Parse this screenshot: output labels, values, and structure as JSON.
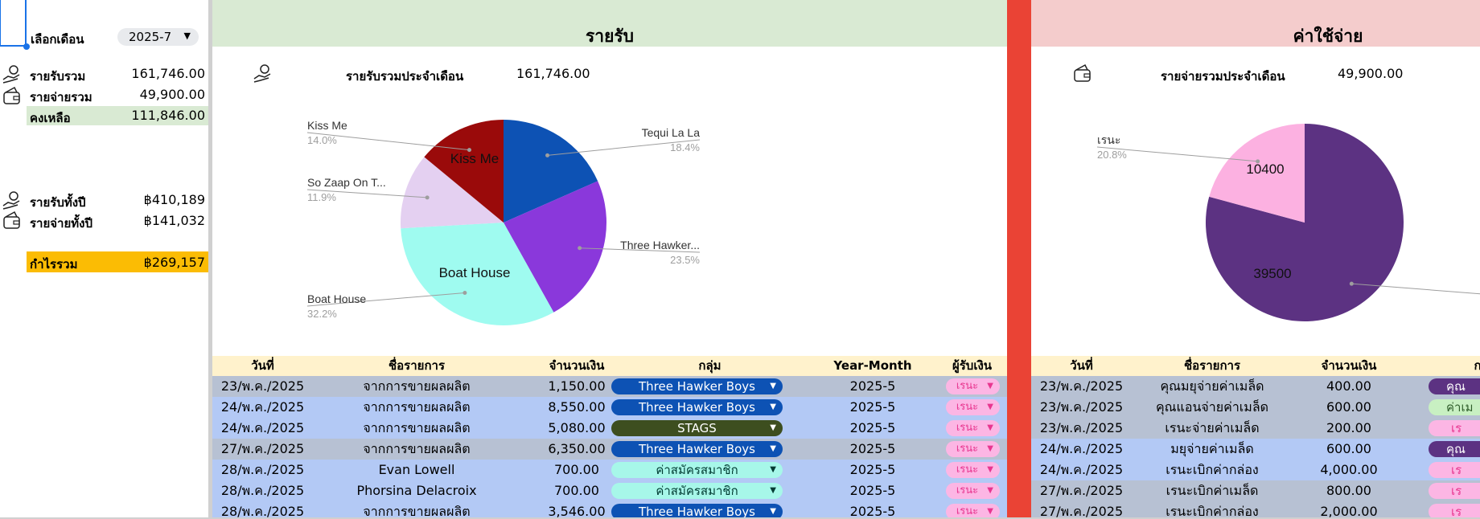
{
  "sidebar": {
    "month_label": "เลือกเดือน",
    "month_value": "2025-7",
    "income_total_label": "รายรับรวม",
    "income_total_value": "161,746.00",
    "expense_total_label": "รายจ่ายรวม",
    "expense_total_value": "49,900.00",
    "balance_label": "คงเหลือ",
    "balance_value": "111,846.00",
    "income_year_label": "รายรับทั้งปี",
    "income_year_value": "฿410,189",
    "expense_year_label": "รายจ่ายทั้งปี",
    "expense_year_value": "฿141,032",
    "profit_label": "กำไรรวม",
    "profit_value": "฿269,157"
  },
  "income": {
    "title": "รายรับ",
    "month_total_label": "รายรับรวมประจำเดือน",
    "month_total_value": "161,746.00",
    "columns": [
      "วันที่",
      "ชื่อรายการ",
      "จำนวนเงิน",
      "กลุ่ม",
      "Year-Month",
      "ผู้รับเงิน"
    ],
    "rows": [
      {
        "date": "23/พ.ค./2025",
        "name": "จากการขายผลผลิต",
        "amount": "1,150.00",
        "group": "Three Hawker Boys",
        "ym": "2025-5",
        "payee": "เรนะ"
      },
      {
        "date": "24/พ.ค./2025",
        "name": "จากการขายผลผลิต",
        "amount": "8,550.00",
        "group": "Three Hawker Boys",
        "ym": "2025-5",
        "payee": "เรนะ"
      },
      {
        "date": "24/พ.ค./2025",
        "name": "จากการขายผลผลิต",
        "amount": "5,080.00",
        "group": "STAGS",
        "ym": "2025-5",
        "payee": "เรนะ"
      },
      {
        "date": "27/พ.ค./2025",
        "name": "จากการขายผลผลิต",
        "amount": "6,350.00",
        "group": "Three Hawker Boys",
        "ym": "2025-5",
        "payee": "เรนะ"
      },
      {
        "date": "28/พ.ค./2025",
        "name": "Evan Lowell",
        "amount": "700.00",
        "group": "ค่าสมัครสมาชิก",
        "ym": "2025-5",
        "payee": "เรนะ"
      },
      {
        "date": "28/พ.ค./2025",
        "name": "Phorsina Delacroix",
        "amount": "700.00",
        "group": "ค่าสมัครสมาชิก",
        "ym": "2025-5",
        "payee": "เรนะ"
      },
      {
        "date": "28/พ.ค./2025",
        "name": "จากการขายผลผลิต",
        "amount": "3,546.00",
        "group": "Three Hawker Boys",
        "ym": "2025-5",
        "payee": "เรนะ"
      }
    ]
  },
  "expense": {
    "title": "ค่าใช้จ่าย",
    "month_total_label": "รายจ่ายรวมประจำเดือน",
    "month_total_value": "49,900.00",
    "columns": [
      "วันที่",
      "ชื่อรายการ",
      "จำนวนเงิน",
      "ก"
    ],
    "rows": [
      {
        "date": "23/พ.ค./2025",
        "name": "คุณมยุจ่ายค่าเมล็ด",
        "amount": "400.00",
        "group": "คุณ"
      },
      {
        "date": "23/พ.ค./2025",
        "name": "คุณแอนจ่ายค่าเมล็ด",
        "amount": "600.00",
        "group": "ค่าเม"
      },
      {
        "date": "23/พ.ค./2025",
        "name": "เรนะจ่ายค่าเมล็ด",
        "amount": "200.00",
        "group": "เร"
      },
      {
        "date": "24/พ.ค./2025",
        "name": "มยุจ่ายค่าเมล็ด",
        "amount": "600.00",
        "group": "คุณ"
      },
      {
        "date": "24/พ.ค./2025",
        "name": "เรนะเบิกค่ากล่อง",
        "amount": "4,000.00",
        "group": "เร"
      },
      {
        "date": "27/พ.ค./2025",
        "name": "เรนะเบิกค่าเมล็ด",
        "amount": "800.00",
        "group": "เร"
      },
      {
        "date": "27/พ.ค./2025",
        "name": "เรนะเบิกค่ากล่อง",
        "amount": "2,000.00",
        "group": "เร"
      }
    ]
  },
  "chart_data": [
    {
      "type": "pie",
      "slices": [
        {
          "label": "Tequi La La",
          "percent": 18.4,
          "color": "#0d52b4"
        },
        {
          "label": "Three Hawker...",
          "percent": 23.5,
          "color": "#8a38db"
        },
        {
          "label": "Boat House",
          "percent": 32.2,
          "color": "#9ffbf0",
          "inner_label": "Boat House"
        },
        {
          "label": "So Zaap On T...",
          "percent": 11.9,
          "color": "#e4d0f1"
        },
        {
          "label": "Kiss Me",
          "percent": 14.0,
          "color": "#9a0a0a",
          "inner_label": "Kiss Me"
        }
      ],
      "legend": "callout labels with percentages"
    },
    {
      "type": "pie",
      "slices": [
        {
          "label": "",
          "percent": 79.2,
          "color": "#5c3282",
          "inner_label": "39500"
        },
        {
          "label": "เรนะ",
          "percent": 20.8,
          "color": "#fcb1e1",
          "inner_label": "10400"
        }
      ],
      "legend": "callout labels with percentages"
    }
  ],
  "colors": {
    "income_header_bg": "#d9ead3",
    "expense_header_bg": "#f4cccc",
    "divider_red": "#ea4335",
    "table_header_bg": "#fff2cc",
    "row_gray": "#b7c1d3",
    "row_blue": "#b3c9f5",
    "profit_bg": "#fbbc04",
    "balance_bg": "#d9ead3"
  }
}
